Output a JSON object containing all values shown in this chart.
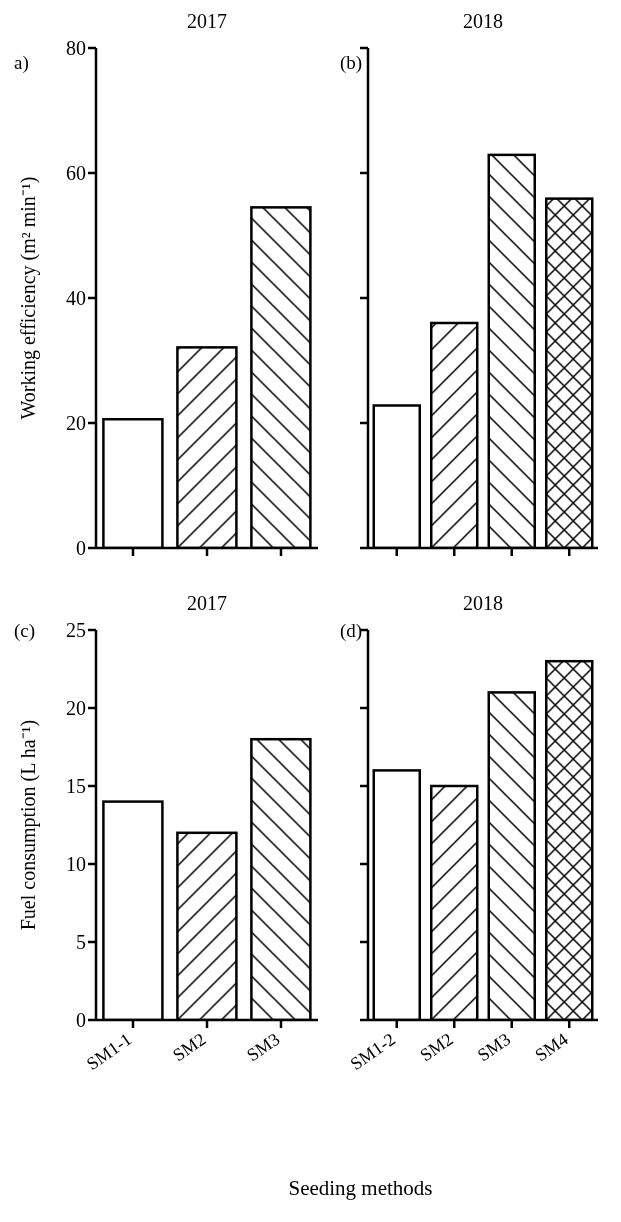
{
  "chart_data": [
    {
      "type": "bar",
      "title": "2017",
      "ylabel": "Working efficiency (m² min⁻¹)",
      "categories": [
        null,
        null,
        null
      ],
      "values": [
        20.6,
        32.1,
        54.5
      ],
      "color": "#000000",
      "ylim": [
        0,
        80
      ],
      "yticks": [
        0,
        20,
        40,
        60,
        80
      ],
      "tick_labels": "y",
      "grid": false,
      "legend": false,
      "annotations": [
        "a)"
      ]
    },
    {
      "type": "bar",
      "title": "2018",
      "categories": [
        null,
        null,
        null,
        null
      ],
      "values": [
        22.8,
        36.0,
        62.9,
        55.9
      ],
      "color": "#000000",
      "ylim": [
        0,
        80
      ],
      "yticks": [
        0,
        20,
        40,
        60,
        80
      ],
      "tick_labels": false,
      "grid": false,
      "legend": false,
      "annotations": [
        "(b)"
      ]
    },
    {
      "type": "bar",
      "title": "2017",
      "ylabel": "Fuel consumption (L ha⁻¹)",
      "xlabel": "Seeding methods",
      "categories": [
        "SM1-1",
        "SM2",
        "SM3"
      ],
      "values": [
        14,
        12,
        18
      ],
      "color": "#000000",
      "ylim": [
        0,
        25
      ],
      "yticks": [
        0,
        5,
        10,
        15,
        20,
        25
      ],
      "grid": false,
      "legend": false,
      "annotations": [
        "(c)"
      ]
    },
    {
      "type": "bar",
      "title": "2018",
      "categories": [
        "SM1-2",
        "SM2",
        "SM3",
        "SM4"
      ],
      "values": [
        16,
        15,
        21,
        23
      ],
      "color": "#000000",
      "ylim": [
        0,
        25
      ],
      "yticks": [
        0,
        5,
        10,
        15,
        20,
        25
      ],
      "tick_labels": "x",
      "grid": false,
      "legend": false,
      "annotations": [
        "(d)"
      ]
    }
  ]
}
